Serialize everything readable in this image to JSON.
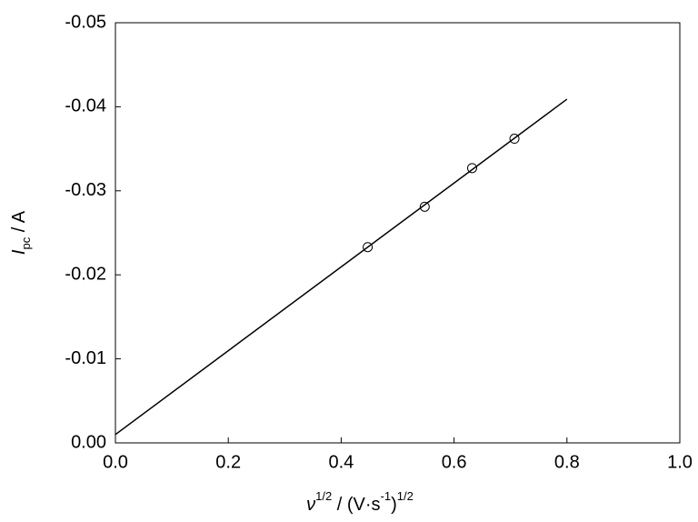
{
  "chart_data": {
    "type": "scatter",
    "xlabel": {
      "symbol": "ν",
      "sup": "1/2",
      "unit": " / (V·s",
      "unit_sup": "-1",
      "close": ")",
      "close_sup": "1/2"
    },
    "ylabel": {
      "symbol": "I",
      "subscript": "pc",
      "unit": " / A"
    },
    "x": [
      0.447,
      0.548,
      0.632,
      0.707
    ],
    "y": [
      -0.0233,
      -0.0281,
      -0.0327,
      -0.0362
    ],
    "fit_line": {
      "x": [
        0,
        0.8
      ],
      "y": [
        -0.001,
        -0.0409
      ]
    },
    "color": "#000000",
    "xlim": [
      0,
      1
    ],
    "ylim": [
      0,
      -0.05
    ],
    "xticks": [
      {
        "value": 0,
        "label": "0.0"
      },
      0.2,
      0.4,
      0.6,
      0.8,
      {
        "value": 1,
        "label": "1.0"
      }
    ],
    "yticks": [
      {
        "value": 0,
        "label": "0.00"
      },
      -0.01,
      -0.02,
      -0.03,
      -0.04,
      -0.05
    ],
    "grid": false
  }
}
